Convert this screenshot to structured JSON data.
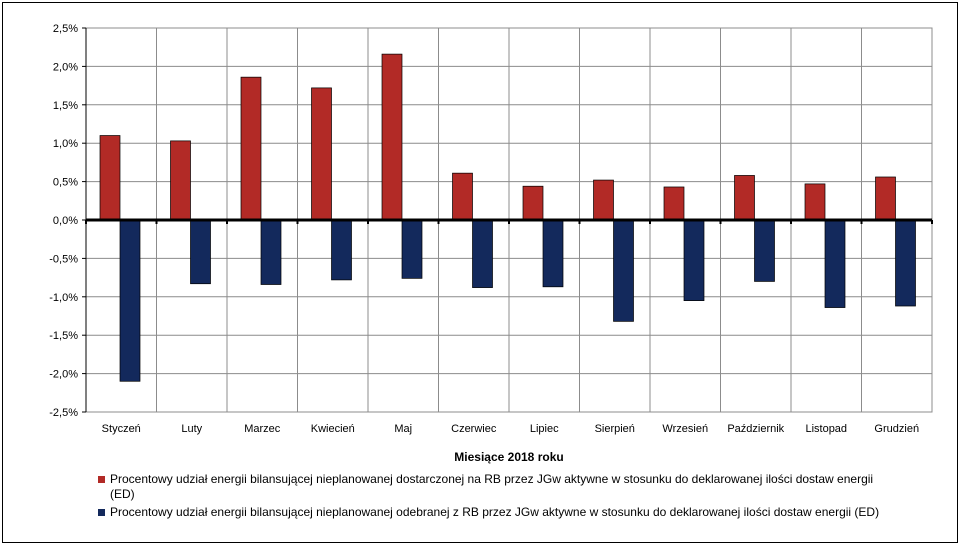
{
  "chart_data": {
    "type": "bar",
    "title": "",
    "xlabel": "Miesiące 2018  roku",
    "ylabel": "",
    "ylim": [
      -2.5,
      2.5
    ],
    "ytick_step": 0.5,
    "ytick_labels": [
      "2,5%",
      "2,0%",
      "1,5%",
      "1,0%",
      "0,5%",
      "0,0%",
      "-0,5%",
      "-1,0%",
      "-1,5%",
      "-2,0%",
      "-2,5%"
    ],
    "yticks": [
      2.5,
      2.0,
      1.5,
      1.0,
      0.5,
      0.0,
      -0.5,
      -1.0,
      -1.5,
      -2.0,
      -2.5
    ],
    "grid": true,
    "legend_position": "bottom",
    "categories": [
      "Styczeń",
      "Luty",
      "Marzec",
      "Kwiecień",
      "Maj",
      "Czerwiec",
      "Lipiec",
      "Sierpień",
      "Wrzesień",
      "Październik",
      "Listopad",
      "Grudzień"
    ],
    "series": [
      {
        "name": "Procentowy udział energii bilansującej nieplanowanej dostarczonej na RB przez JGw aktywne w stosunku do deklarowanej ilości dostaw energii (ED)",
        "color": "#b22a26",
        "values": [
          1.1,
          1.03,
          1.86,
          1.72,
          2.16,
          0.61,
          0.44,
          0.52,
          0.43,
          0.58,
          0.47,
          0.56
        ]
      },
      {
        "name": "Procentowy udział energii bilansującej nieplanowanej odebranej z RB przez JGw aktywne w stosunku do deklarowanej ilości dostaw energii (ED)",
        "color": "#13295c",
        "values": [
          -2.1,
          -0.83,
          -0.84,
          -0.78,
          -0.76,
          -0.88,
          -0.87,
          -1.32,
          -1.05,
          -0.8,
          -1.14,
          -1.12
        ]
      }
    ]
  }
}
